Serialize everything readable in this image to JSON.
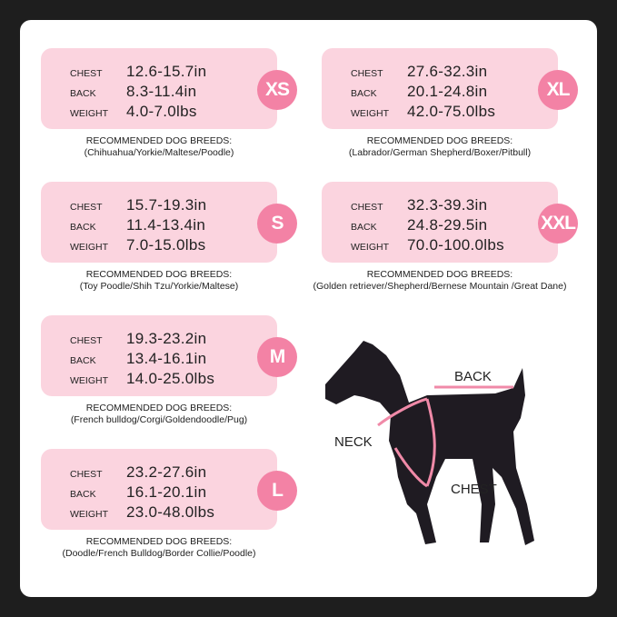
{
  "labels": {
    "chest": "CHEST",
    "back": "BACK",
    "weight": "WEIGHT",
    "recommended": "RECOMMENDED DOG BREEDS:"
  },
  "sizes": [
    {
      "size": "XS",
      "chest": "12.6-15.7in",
      "back": "8.3-11.4in",
      "weight": "4.0-7.0lbs",
      "breeds": "(Chihuahua/Yorkie/Maltese/Poodle)"
    },
    {
      "size": "S",
      "chest": "15.7-19.3in",
      "back": "11.4-13.4in",
      "weight": "7.0-15.0lbs",
      "breeds": "(Toy Poodle/Shih Tzu/Yorkie/Maltese)"
    },
    {
      "size": "M",
      "chest": "19.3-23.2in",
      "back": "13.4-16.1in",
      "weight": "14.0-25.0lbs",
      "breeds": "(French bulldog/Corgi/Goldendoodle/Pug)"
    },
    {
      "size": "L",
      "chest": "23.2-27.6in",
      "back": "16.1-20.1in",
      "weight": "23.0-48.0lbs",
      "breeds": "(Doodle/French Bulldog/Border Collie/Poodle)"
    },
    {
      "size": "XL",
      "chest": "27.6-32.3in",
      "back": "20.1-24.8in",
      "weight": "42.0-75.0lbs",
      "breeds": "(Labrador/German Shepherd/Boxer/Pitbull)"
    },
    {
      "size": "XXL",
      "chest": "32.3-39.3in",
      "back": "24.8-29.5in",
      "weight": "70.0-100.0lbs",
      "breeds": "(Golden retriever/Shepherd/Bernese Mountain /Great Dane)"
    }
  ],
  "diagram": {
    "back": "BACK",
    "neck": "NECK",
    "chest": "CHEST"
  },
  "colors": {
    "card": "#fbd4df",
    "circle": "#f382a5",
    "background": "#1e1e1e",
    "strap": "#f08aa8"
  }
}
